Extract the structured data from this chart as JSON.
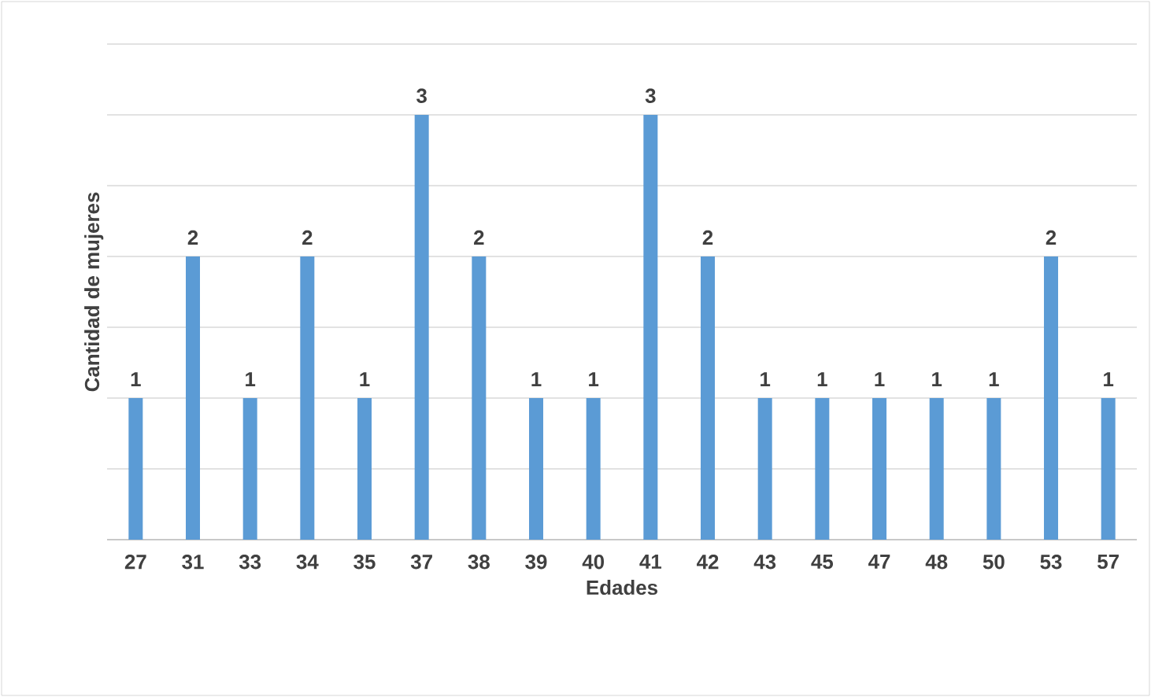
{
  "chart_data": {
    "type": "bar",
    "xlabel": "Edades",
    "ylabel": "Cantidad de mujeres",
    "categories": [
      "27",
      "31",
      "33",
      "34",
      "35",
      "37",
      "38",
      "39",
      "40",
      "41",
      "42",
      "43",
      "45",
      "47",
      "48",
      "50",
      "53",
      "57"
    ],
    "values": [
      1,
      2,
      1,
      2,
      1,
      3,
      2,
      1,
      1,
      3,
      2,
      1,
      1,
      1,
      1,
      1,
      2,
      1
    ],
    "color": "#5b9bd5",
    "ylim": [
      0,
      3.5
    ],
    "yticks": [
      {
        "value": 0,
        "label": null
      },
      {
        "value": 0.5,
        "label": null
      },
      {
        "value": 1,
        "label": null
      },
      {
        "value": 1.5,
        "label": null
      },
      {
        "value": 2,
        "label": null
      },
      {
        "value": 2.5,
        "label": null
      },
      {
        "value": 3,
        "label": null
      },
      {
        "value": 3.5,
        "label": null
      }
    ],
    "tick_labels": "x",
    "grid": "y",
    "data_labels": true
  }
}
